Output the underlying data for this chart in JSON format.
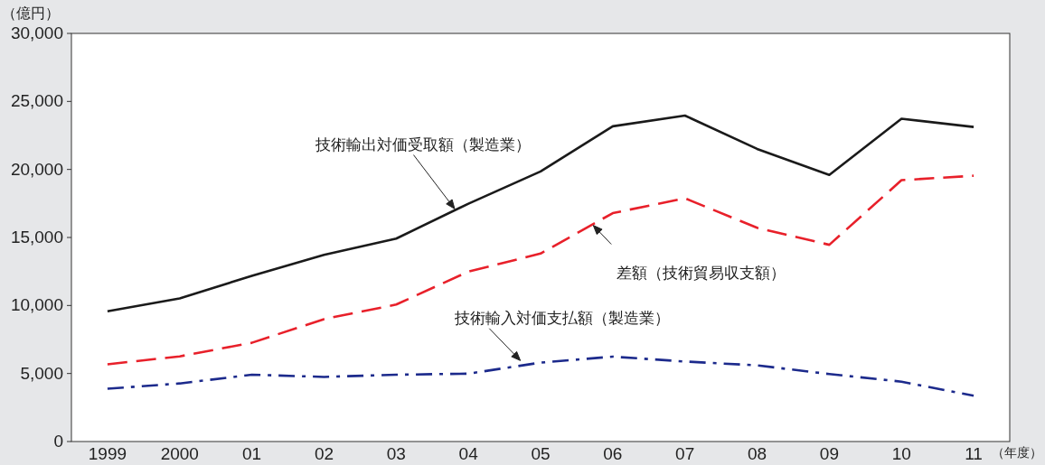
{
  "chart_data": {
    "type": "line",
    "xlabel": "（年度）",
    "ylabel": "（億円）",
    "categories": [
      "1999",
      "2000",
      "01",
      "02",
      "03",
      "04",
      "05",
      "06",
      "07",
      "08",
      "09",
      "10",
      "11"
    ],
    "ylim": [
      0,
      30000
    ],
    "yticks": [
      {
        "value": 0,
        "label": "0"
      },
      {
        "value": 5000,
        "label": "5,000"
      },
      {
        "value": 10000,
        "label": "10,000"
      },
      {
        "value": 15000,
        "label": "15,000"
      },
      {
        "value": 20000,
        "label": "20,000"
      },
      {
        "value": 25000,
        "label": "25,000"
      },
      {
        "value": 30000,
        "label": "30,000"
      }
    ],
    "series": [
      {
        "name": "技術輸出対価受取額（製造業）",
        "color": "#1a1a1a",
        "line_style": "solid",
        "values": [
          9580,
          10520,
          12180,
          13720,
          14920,
          17480,
          19850,
          23170,
          23960,
          21510,
          19600,
          23730,
          23120
        ]
      },
      {
        "name": "差額（技術貿易収支額）",
        "color": "#e8202a",
        "line_style": "dashed",
        "values": [
          5680,
          6260,
          7260,
          9000,
          10070,
          12490,
          13820,
          16790,
          17880,
          15710,
          14460,
          19210,
          19540
        ]
      },
      {
        "name": "技術輸入対価支払額（製造業）",
        "color": "#1c2a8c",
        "line_style": "dashdot",
        "values": [
          3880,
          4270,
          4910,
          4750,
          4910,
          4990,
          5800,
          6240,
          5880,
          5600,
          4960,
          4400,
          3370
        ]
      }
    ]
  }
}
